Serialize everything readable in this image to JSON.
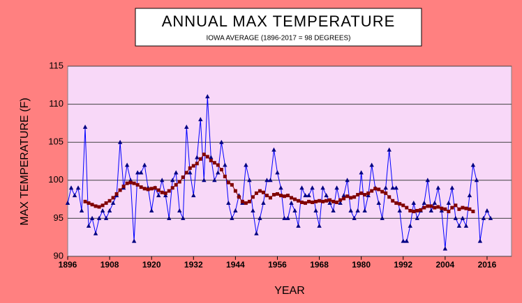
{
  "chart_data": {
    "type": "line",
    "title": "ANNUAL MAX TEMPERATURE",
    "subtitle": "IOWA AVERAGE (1896-2017 = 98 DEGREES)",
    "x_label": "YEAR",
    "y_label": "MAX TEMPERATURE (F)",
    "xlim": [
      1896,
      2023
    ],
    "xticks": [
      1896,
      1908,
      1920,
      1932,
      1944,
      1956,
      1968,
      1980,
      1992,
      2004,
      2016
    ],
    "ylim": [
      90,
      115
    ],
    "yticks": [
      90,
      95,
      100,
      105,
      110,
      115
    ],
    "grid": true,
    "series": [
      {
        "color": "#0000ff",
        "marker": "triangle",
        "marker_color": "#000080",
        "x": [
          1896,
          1897,
          1898,
          1899,
          1900,
          1901,
          1902,
          1903,
          1904,
          1905,
          1906,
          1907,
          1908,
          1909,
          1910,
          1911,
          1912,
          1913,
          1914,
          1915,
          1916,
          1917,
          1918,
          1919,
          1920,
          1921,
          1922,
          1923,
          1924,
          1925,
          1926,
          1927,
          1928,
          1929,
          1930,
          1931,
          1932,
          1933,
          1934,
          1935,
          1936,
          1937,
          1938,
          1939,
          1940,
          1941,
          1942,
          1943,
          1944,
          1945,
          1946,
          1947,
          1948,
          1949,
          1950,
          1951,
          1952,
          1953,
          1954,
          1955,
          1956,
          1957,
          1958,
          1959,
          1960,
          1961,
          1962,
          1963,
          1964,
          1965,
          1966,
          1967,
          1968,
          1969,
          1970,
          1971,
          1972,
          1973,
          1974,
          1975,
          1976,
          1977,
          1978,
          1979,
          1980,
          1981,
          1982,
          1983,
          1984,
          1985,
          1986,
          1987,
          1988,
          1989,
          1990,
          1991,
          1992,
          1993,
          1994,
          1995,
          1996,
          1997,
          1998,
          1999,
          2000,
          2001,
          2002,
          2003,
          2004,
          2005,
          2006,
          2007,
          2008,
          2009,
          2010,
          2011,
          2012,
          2013,
          2014,
          2015,
          2016,
          2017
        ],
        "values": [
          97,
          99,
          98,
          99,
          96,
          107,
          94,
          95,
          93,
          95,
          96,
          95,
          96,
          97,
          98,
          105,
          99,
          102,
          100,
          92,
          101,
          101,
          102,
          99,
          96,
          99,
          98,
          100,
          98,
          95,
          100,
          101,
          96,
          95,
          107,
          101,
          98,
          103,
          108,
          100,
          111,
          103,
          100,
          101,
          105,
          102,
          97,
          95,
          96,
          98,
          97,
          102,
          100,
          96,
          93,
          95,
          97,
          100,
          100,
          104,
          101,
          99,
          95,
          95,
          97,
          96,
          94,
          99,
          98,
          98,
          99,
          96,
          94,
          99,
          98,
          97,
          96,
          99,
          97,
          98,
          100,
          96,
          95,
          96,
          101,
          96,
          98,
          102,
          99,
          97,
          95,
          99,
          104,
          99,
          99,
          96,
          92,
          92,
          94,
          97,
          95,
          96,
          97,
          100,
          96,
          97,
          99,
          96,
          91,
          97,
          99,
          95,
          94,
          95,
          94,
          98,
          102,
          100,
          92,
          95,
          96,
          95
        ]
      },
      {
        "color": "#800000",
        "marker": "square",
        "marker_color": "#800000",
        "x": [
          1901,
          1902,
          1903,
          1904,
          1905,
          1906,
          1907,
          1908,
          1909,
          1910,
          1911,
          1912,
          1913,
          1914,
          1915,
          1916,
          1917,
          1918,
          1919,
          1920,
          1921,
          1922,
          1923,
          1924,
          1925,
          1926,
          1927,
          1928,
          1929,
          1930,
          1931,
          1932,
          1933,
          1934,
          1935,
          1936,
          1937,
          1938,
          1939,
          1940,
          1941,
          1942,
          1943,
          1944,
          1945,
          1946,
          1947,
          1948,
          1949,
          1950,
          1951,
          1952,
          1953,
          1954,
          1955,
          1956,
          1957,
          1958,
          1959,
          1960,
          1961,
          1962,
          1963,
          1964,
          1965,
          1966,
          1967,
          1968,
          1969,
          1970,
          1971,
          1972,
          1973,
          1974,
          1975,
          1976,
          1977,
          1978,
          1979,
          1980,
          1981,
          1982,
          1983,
          1984,
          1985,
          1986,
          1987,
          1988,
          1989,
          1990,
          1991,
          1992,
          1993,
          1994,
          1995,
          1996,
          1997,
          1998,
          1999,
          2000,
          2001,
          2002,
          2003,
          2004,
          2005,
          2006,
          2007,
          2008,
          2009,
          2010,
          2011,
          2012
        ],
        "values": [
          97.2,
          97.0,
          96.8,
          96.6,
          96.5,
          96.7,
          97.0,
          97.3,
          97.7,
          98.2,
          98.7,
          99.2,
          99.6,
          99.7,
          99.6,
          99.4,
          99.1,
          98.9,
          98.8,
          98.9,
          99.0,
          98.7,
          98.4,
          98.3,
          98.6,
          99.0,
          99.4,
          99.8,
          100.4,
          101.0,
          101.6,
          101.9,
          102.2,
          102.8,
          103.4,
          103.1,
          102.6,
          102.3,
          102.0,
          101.4,
          100.5,
          99.7,
          99.4,
          98.6,
          97.8,
          97.2,
          97.0,
          97.2,
          97.8,
          98.3,
          98.6,
          98.4,
          98.0,
          97.7,
          98.1,
          98.2,
          98.0,
          97.9,
          98.0,
          97.7,
          97.5,
          97.3,
          97.1,
          97.0,
          97.2,
          97.1,
          97.2,
          97.3,
          97.2,
          97.3,
          97.4,
          97.2,
          97.1,
          97.4,
          97.6,
          97.9,
          97.7,
          97.8,
          98.1,
          98.3,
          98.1,
          98.3,
          98.6,
          98.9,
          98.8,
          98.5,
          98.3,
          97.8,
          97.3,
          97.0,
          96.9,
          96.7,
          96.4,
          96.0,
          95.9,
          96.0,
          96.1,
          96.4,
          96.6,
          96.6,
          96.4,
          96.5,
          96.3,
          96.2,
          95.9,
          96.4,
          96.7,
          96.2,
          96.4,
          96.3,
          96.2,
          95.9
        ]
      }
    ]
  }
}
